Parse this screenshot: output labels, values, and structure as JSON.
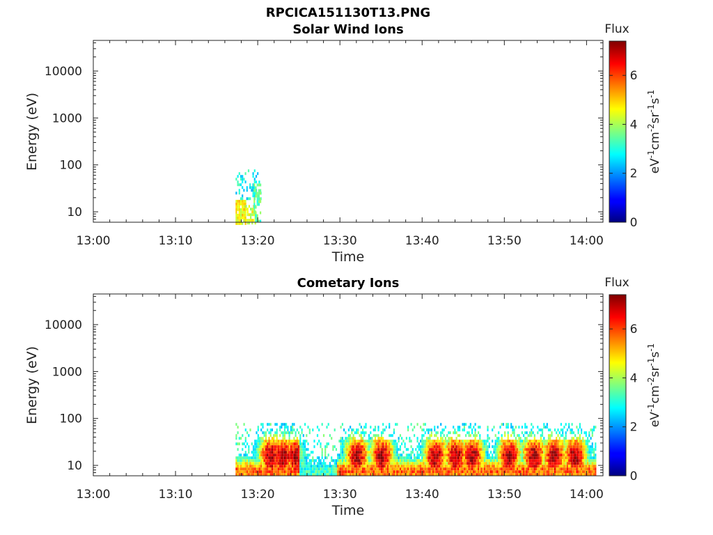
{
  "figure": {
    "filename_title": "RPCICA151130T13.PNG"
  },
  "chart_data": [
    {
      "type": "heatmap",
      "title": "Solar Wind Ions",
      "xlabel": "Time",
      "ylabel": "Energy (eV)",
      "x_ticks": [
        "13:00",
        "13:10",
        "13:20",
        "13:30",
        "13:40",
        "13:50",
        "14:00"
      ],
      "xlim_minutes_after_13": [
        0,
        62
      ],
      "y_scale": "log",
      "y_ticks": [
        "10",
        "100",
        "1000",
        "10000"
      ],
      "ylim": [
        6,
        45000
      ],
      "colorbar": {
        "label": "eV-1cm-2sr-1s-1",
        "title": "Flux",
        "ticks": [
          "0",
          "2",
          "4",
          "6"
        ],
        "range": [
          0,
          7.4
        ]
      },
      "blocks": [
        {
          "t0": 17.3,
          "t1": 18.5,
          "e0": 6,
          "e1": 18,
          "flux": 4.6,
          "density": 0.9
        },
        {
          "t0": 18.5,
          "t1": 19.7,
          "e0": 6,
          "e1": 14,
          "flux": 4.4,
          "density": 0.6
        },
        {
          "t0": 17.3,
          "t1": 20.4,
          "e0": 18,
          "e1": 80,
          "flux": 2.8,
          "density": 0.35
        },
        {
          "t0": 19.5,
          "t1": 20.4,
          "e0": 6,
          "e1": 40,
          "flux": 3.4,
          "density": 0.5
        }
      ]
    },
    {
      "type": "heatmap",
      "title": "Cometary Ions",
      "xlabel": "Time",
      "ylabel": "Energy (eV)",
      "x_ticks": [
        "13:00",
        "13:10",
        "13:20",
        "13:30",
        "13:40",
        "13:50",
        "14:00"
      ],
      "xlim_minutes_after_13": [
        0,
        62
      ],
      "y_scale": "log",
      "y_ticks": [
        "10",
        "100",
        "1000",
        "10000"
      ],
      "ylim": [
        6,
        45000
      ],
      "colorbar": {
        "label": "eV-1cm-2sr-1s-1",
        "title": "Flux",
        "ticks": [
          "0",
          "2",
          "4",
          "6"
        ],
        "range": [
          0,
          7.4
        ]
      },
      "data_window_minutes": [
        17.3,
        61.0
      ],
      "energy_max_eV": 80
    }
  ]
}
